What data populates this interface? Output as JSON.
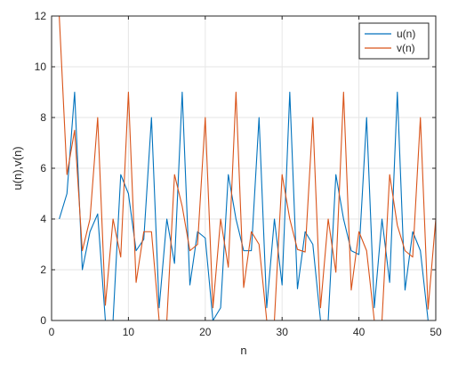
{
  "chart_data": {
    "type": "line",
    "title": "",
    "xlabel": "n",
    "ylabel": "u(n),v(n)",
    "xlim": [
      0,
      50
    ],
    "ylim": [
      0,
      12
    ],
    "xticks": [
      0,
      10,
      20,
      30,
      40,
      50
    ],
    "yticks": [
      0,
      2,
      4,
      6,
      8,
      10,
      12
    ],
    "grid": true,
    "legend_position": "top-right",
    "x": [
      1,
      2,
      3,
      4,
      5,
      6,
      7,
      8,
      9,
      10,
      11,
      12,
      13,
      14,
      15,
      16,
      17,
      18,
      19,
      20,
      21,
      22,
      23,
      24,
      25,
      26,
      27,
      28,
      29,
      30,
      31,
      32,
      33,
      34,
      35,
      36,
      37,
      38,
      39,
      40,
      41,
      42,
      43,
      44,
      45,
      46,
      47,
      48,
      49,
      50
    ],
    "series": [
      {
        "name": "u(n)",
        "color": "#0072bd",
        "values": [
          4.0,
          5.0,
          9.0,
          2.0,
          3.5,
          4.2,
          0.0,
          0.0,
          5.75,
          5.0,
          2.75,
          3.2,
          8.0,
          0.5,
          4.0,
          2.25,
          9.0,
          1.4,
          3.5,
          3.25,
          0.0,
          0.5,
          5.75,
          4.0,
          2.75,
          2.75,
          8.0,
          0.5,
          4.0,
          1.4,
          9.0,
          1.25,
          3.5,
          3.0,
          0.0,
          0.0,
          5.75,
          4.0,
          2.75,
          2.6,
          8.0,
          0.5,
          4.0,
          1.5,
          9.0,
          1.2,
          3.5,
          2.75,
          0.0,
          0.0
        ]
      },
      {
        "name": "v(n)",
        "color": "#d95319",
        "values": [
          12.0,
          5.75,
          7.5,
          2.75,
          4.0,
          8.0,
          0.6,
          4.0,
          2.5,
          9.0,
          1.5,
          3.5,
          3.5,
          0.0,
          0.0,
          5.75,
          4.5,
          2.75,
          3.0,
          8.0,
          0.5,
          4.0,
          2.1,
          9.0,
          1.3,
          3.5,
          3.0,
          0.0,
          0.0,
          5.75,
          4.0,
          2.8,
          2.7,
          8.0,
          0.5,
          4.0,
          1.9,
          9.0,
          1.2,
          3.5,
          2.75,
          0.0,
          0.0,
          5.75,
          3.75,
          2.75,
          2.5,
          8.0,
          0.45,
          4.0
        ]
      }
    ]
  }
}
